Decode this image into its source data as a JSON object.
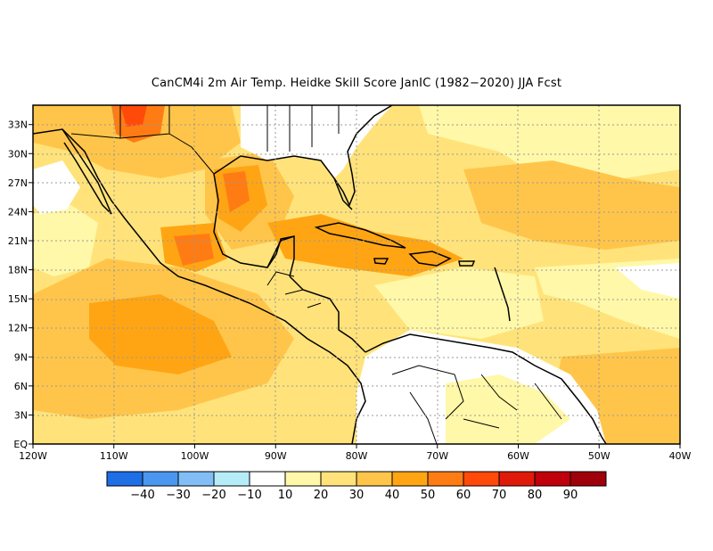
{
  "title": "CanCM4i  2m Air Temp. Heidke Skill Score JanIC (1982−2020) JJA Fcst",
  "axes": {
    "lon_labels": [
      "120W",
      "110W",
      "100W",
      "90W",
      "80W",
      "70W",
      "60W",
      "50W",
      "40W"
    ],
    "lat_labels": [
      "EQ",
      "3N",
      "6N",
      "9N",
      "12N",
      "15N",
      "18N",
      "21N",
      "24N",
      "27N",
      "30N",
      "33N"
    ],
    "lon_range": [
      -120,
      -40
    ],
    "lat_range": [
      0,
      35
    ],
    "grid": true
  },
  "colorbar": {
    "labels": [
      "−40",
      "−30",
      "−20",
      "−10",
      "10",
      "20",
      "30",
      "40",
      "50",
      "60",
      "70",
      "80",
      "90"
    ],
    "colors": [
      "#1e6ee6",
      "#4a96f0",
      "#82bef5",
      "#b4ecf8",
      "#ffffff",
      "#fff8a8",
      "#ffe37a",
      "#ffc54a",
      "#ffa514",
      "#ff7c14",
      "#ff4a0a",
      "#e01a0a",
      "#c0000a",
      "#a0000a"
    ]
  },
  "land_color": "#ffffff",
  "coast_color": "#000000"
}
